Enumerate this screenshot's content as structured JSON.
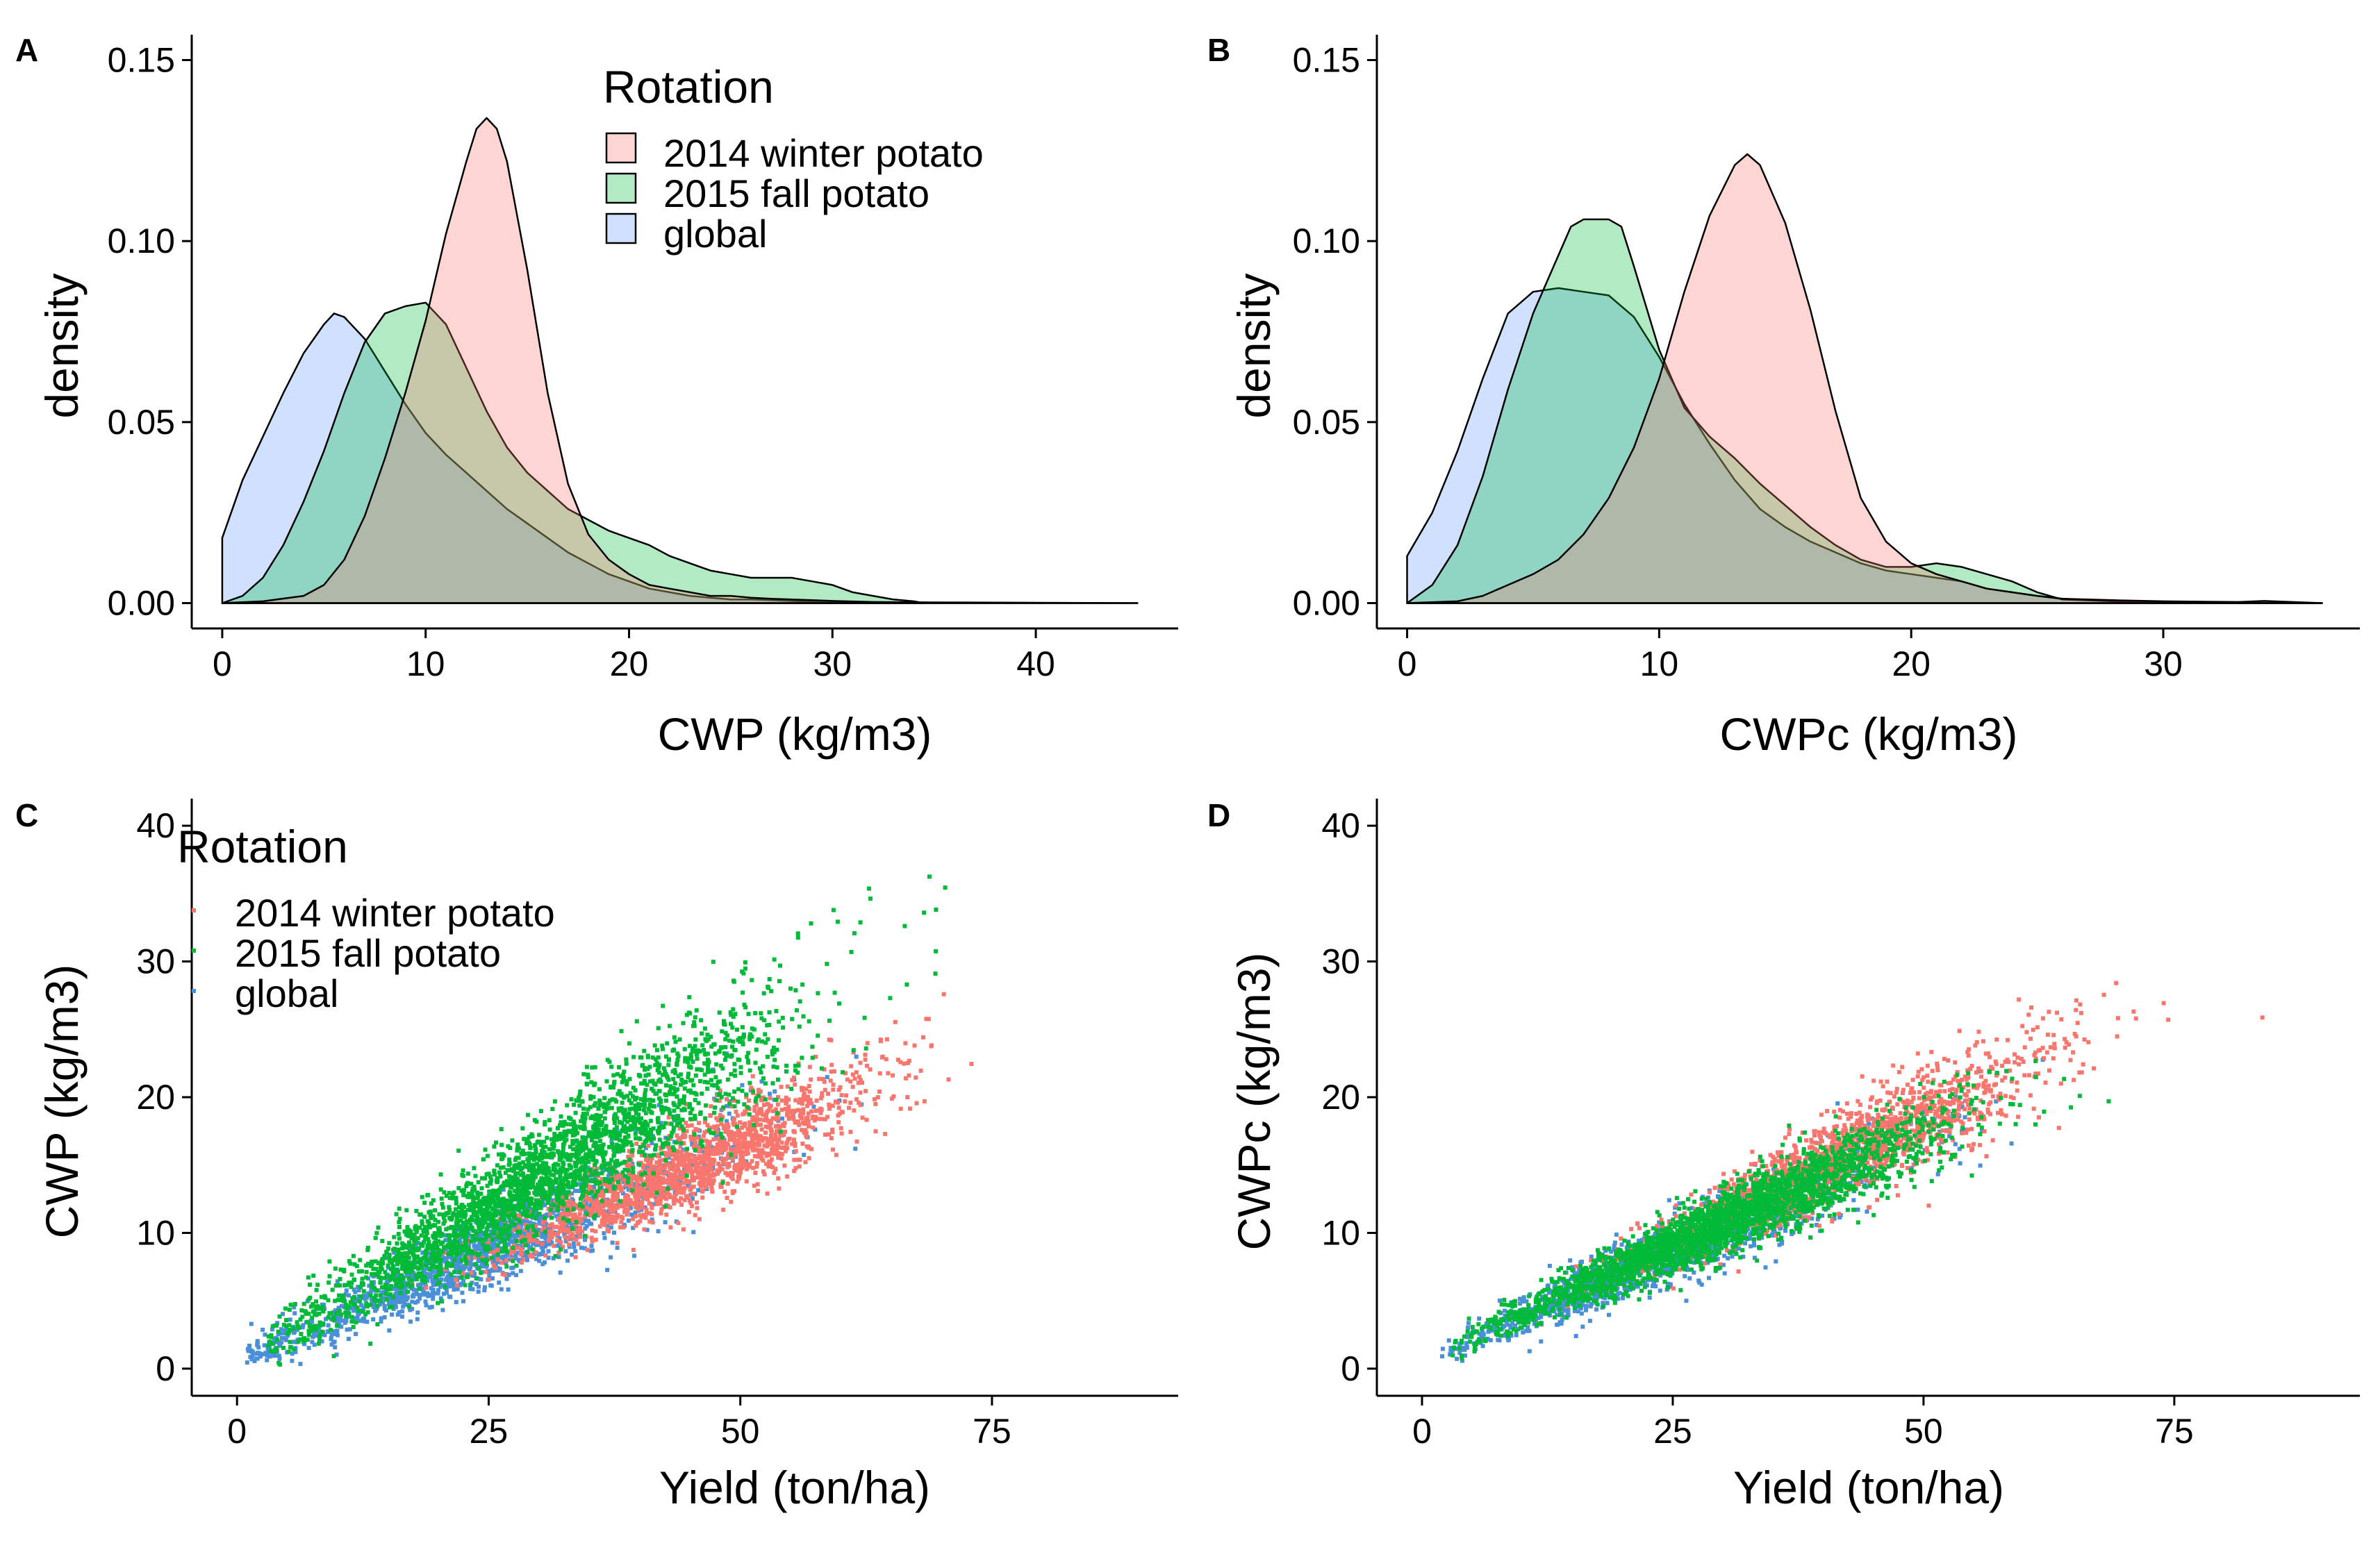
{
  "colors": {
    "winter_fill": "#F8766D",
    "fall_fill": "#00BA38",
    "global_fill": "#619CFF",
    "winter_point": "#F8766D",
    "fall_point": "#00BA38",
    "global_point": "#4A90D9"
  },
  "chart_data": [
    {
      "id": "A",
      "type": "area",
      "panel_label": "A",
      "xlabel": "CWP (kg/m3)",
      "ylabel": "density",
      "xlim": [
        -1.5,
        47
      ],
      "ylim": [
        -0.007,
        0.157
      ],
      "xticks": [
        0,
        10,
        20,
        30,
        40
      ],
      "xtick_labels": [
        "0",
        "10",
        "20",
        "30",
        "40"
      ],
      "yticks": [
        0,
        0.05,
        0.1,
        0.15
      ],
      "ytick_labels": [
        "0.00",
        "0.05",
        "0.10",
        "0.15"
      ],
      "legend": {
        "title": "Rotation",
        "position": "top-right",
        "entries": [
          "2014 winter potato",
          "2015 fall potato",
          "global"
        ]
      },
      "series": [
        {
          "name": "global",
          "x": [
            0,
            1,
            2,
            3,
            4,
            5,
            5.5,
            6,
            7,
            8,
            9,
            10,
            11,
            12,
            13,
            14,
            15,
            16,
            17,
            18,
            19,
            20,
            21,
            22,
            23,
            24,
            25,
            26,
            27,
            28,
            29,
            30,
            32,
            34,
            37,
            40,
            45
          ],
          "y": [
            0.018,
            0.034,
            0.046,
            0.058,
            0.069,
            0.077,
            0.08,
            0.079,
            0.073,
            0.064,
            0.055,
            0.047,
            0.041,
            0.036,
            0.031,
            0.026,
            0.022,
            0.018,
            0.014,
            0.011,
            0.008,
            0.006,
            0.004,
            0.003,
            0.002,
            0.0015,
            0.001,
            0.001,
            0.0008,
            0.0006,
            0.0004,
            0.0003,
            0.0002,
            0.0001,
            0.0001,
            5e-05,
            0
          ]
        },
        {
          "name": "2015 fall potato",
          "x": [
            0,
            1,
            2,
            3,
            4,
            5,
            6,
            7,
            8,
            9,
            10,
            11,
            12,
            13,
            14,
            15,
            16,
            17,
            18,
            19,
            20,
            21,
            22,
            23,
            24,
            25,
            26,
            27,
            28,
            29,
            30,
            31,
            32,
            33,
            34,
            34.5
          ],
          "y": [
            0,
            0.002,
            0.007,
            0.016,
            0.028,
            0.042,
            0.058,
            0.072,
            0.08,
            0.082,
            0.083,
            0.077,
            0.065,
            0.053,
            0.043,
            0.036,
            0.031,
            0.026,
            0.023,
            0.02,
            0.018,
            0.016,
            0.013,
            0.011,
            0.009,
            0.008,
            0.007,
            0.007,
            0.007,
            0.006,
            0.005,
            0.003,
            0.002,
            0.001,
            0.0005,
            0
          ]
        },
        {
          "name": "2014 winter potato",
          "x": [
            0,
            2,
            4,
            5,
            6,
            7,
            8,
            9,
            10,
            10.5,
            11,
            12,
            12.5,
            13,
            13.5,
            14,
            15,
            16,
            17,
            18,
            19,
            20,
            21,
            22,
            23,
            24,
            25,
            26,
            27,
            28,
            29,
            30,
            32,
            35,
            40,
            45
          ],
          "y": [
            0,
            0.0005,
            0.002,
            0.005,
            0.012,
            0.024,
            0.04,
            0.058,
            0.078,
            0.09,
            0.102,
            0.122,
            0.131,
            0.134,
            0.131,
            0.122,
            0.092,
            0.058,
            0.033,
            0.019,
            0.012,
            0.008,
            0.005,
            0.004,
            0.003,
            0.002,
            0.002,
            0.0015,
            0.0012,
            0.001,
            0.0008,
            0.0006,
            0.0003,
            0.0002,
            0.0001,
            0
          ]
        }
      ]
    },
    {
      "id": "B",
      "type": "area",
      "panel_label": "B",
      "xlabel": "CWPc (kg/m3)",
      "ylabel": "density",
      "xlim": [
        -1.2,
        37.8
      ],
      "ylim": [
        -0.007,
        0.157
      ],
      "xticks": [
        0,
        10,
        20,
        30
      ],
      "xtick_labels": [
        "0",
        "10",
        "20",
        "30"
      ],
      "yticks": [
        0,
        0.05,
        0.1,
        0.15
      ],
      "ytick_labels": [
        "0.00",
        "0.05",
        "0.10",
        "0.15"
      ],
      "legend": {
        "title": "",
        "position": "none",
        "entries": []
      },
      "series": [
        {
          "name": "global",
          "x": [
            0,
            1,
            2,
            3,
            4,
            5,
            6,
            7,
            8,
            9,
            10,
            11,
            12,
            13,
            14,
            15,
            16,
            17,
            18,
            19,
            20,
            21,
            22,
            23,
            24,
            25,
            26,
            28,
            30,
            33,
            36.3
          ],
          "y": [
            0.013,
            0.025,
            0.042,
            0.062,
            0.08,
            0.086,
            0.087,
            0.086,
            0.085,
            0.079,
            0.068,
            0.055,
            0.044,
            0.034,
            0.026,
            0.021,
            0.017,
            0.014,
            0.011,
            0.009,
            0.008,
            0.007,
            0.006,
            0.004,
            0.003,
            0.002,
            0.0012,
            0.0006,
            0.0003,
            0.0001,
            0
          ]
        },
        {
          "name": "2015 fall potato",
          "x": [
            0,
            1,
            2,
            3,
            4,
            5,
            6,
            6.5,
            7,
            8,
            8.5,
            9,
            10,
            11,
            12,
            13,
            14,
            15,
            16,
            17,
            18,
            19,
            20,
            21,
            22,
            23,
            24,
            25,
            26,
            28,
            30,
            33,
            36.3
          ],
          "y": [
            0,
            0.005,
            0.016,
            0.035,
            0.059,
            0.08,
            0.096,
            0.104,
            0.106,
            0.106,
            0.104,
            0.093,
            0.07,
            0.054,
            0.046,
            0.04,
            0.033,
            0.027,
            0.021,
            0.016,
            0.012,
            0.01,
            0.01,
            0.011,
            0.01,
            0.008,
            0.006,
            0.003,
            0.001,
            0.0005,
            0.0002,
            0.0001,
            0
          ]
        },
        {
          "name": "2014 winter potato",
          "x": [
            0,
            2,
            3,
            4,
            5,
            6,
            7,
            8,
            9,
            10,
            11,
            12,
            13,
            13.5,
            14,
            15,
            16,
            17,
            18,
            19,
            20,
            21,
            22,
            23,
            24,
            25,
            26,
            28,
            30,
            33,
            34,
            36.3
          ],
          "y": [
            0,
            0.0005,
            0.002,
            0.005,
            0.008,
            0.012,
            0.019,
            0.029,
            0.043,
            0.062,
            0.086,
            0.107,
            0.121,
            0.124,
            0.121,
            0.105,
            0.081,
            0.053,
            0.029,
            0.017,
            0.011,
            0.008,
            0.006,
            0.004,
            0.003,
            0.002,
            0.0012,
            0.0008,
            0.0005,
            0.0003,
            0.0006,
            0
          ]
        }
      ]
    },
    {
      "id": "C",
      "type": "scatter",
      "panel_label": "C",
      "xlabel": "Yield (ton/ha)",
      "ylabel": "CWP (kg/m3)",
      "xlim": [
        -4.5,
        93.5
      ],
      "ylim": [
        -2,
        42
      ],
      "xticks": [
        0,
        25,
        50,
        75
      ],
      "xtick_labels": [
        "0",
        "25",
        "50",
        "75"
      ],
      "yticks": [
        0,
        10,
        20,
        30,
        40
      ],
      "ytick_labels": [
        "0",
        "10",
        "20",
        "30",
        "40"
      ],
      "legend": {
        "title": "Rotation",
        "position": "top-left",
        "entries": [
          "2014 winter potato",
          "2015 fall potato",
          "global"
        ]
      },
      "series": [
        {
          "name": "global",
          "count": 1600,
          "x_mean": 25,
          "x_sd": 12,
          "x_range": [
            1,
            82
          ],
          "slope": 0.33,
          "intercept": 0.5,
          "noise_sd": 1.8
        },
        {
          "name": "2014 winter potato",
          "count": 1600,
          "x_mean": 45,
          "x_sd": 9,
          "x_range": [
            8,
            88
          ],
          "slope": 0.325,
          "intercept": 0.3,
          "noise_sd": 1.4
        },
        {
          "name": "2015 fall potato",
          "count": 2600,
          "x_mean": 30,
          "x_sd": 12,
          "x_range": [
            3,
            87
          ],
          "slope": 0.46,
          "intercept": 0.3,
          "noise_sd": 2.4
        }
      ]
    },
    {
      "id": "D",
      "type": "scatter",
      "panel_label": "D",
      "xlabel": "Yield (ton/ha)",
      "ylabel": "CWPc (kg/m3)",
      "xlim": [
        -4.5,
        93.5
      ],
      "ylim": [
        -2,
        42
      ],
      "xticks": [
        0,
        25,
        50,
        75
      ],
      "xtick_labels": [
        "0",
        "25",
        "50",
        "75"
      ],
      "yticks": [
        0,
        10,
        20,
        30,
        40
      ],
      "ytick_labels": [
        "0",
        "10",
        "20",
        "30",
        "40"
      ],
      "legend": {
        "title": "",
        "position": "none",
        "entries": []
      },
      "series": [
        {
          "name": "global",
          "count": 1500,
          "x_mean": 25,
          "x_sd": 11,
          "x_range": [
            2,
            82
          ],
          "slope": 0.33,
          "intercept": 0.5,
          "noise_sd": 1.6
        },
        {
          "name": "2014 winter potato",
          "count": 1600,
          "x_mean": 42,
          "x_sd": 10,
          "x_range": [
            5,
            88
          ],
          "slope": 0.36,
          "intercept": 0.5,
          "noise_sd": 1.5
        },
        {
          "name": "2015 fall potato",
          "count": 2600,
          "x_mean": 30,
          "x_sd": 11,
          "x_range": [
            3,
            87
          ],
          "slope": 0.33,
          "intercept": 0.8,
          "noise_sd": 1.3
        }
      ]
    }
  ]
}
